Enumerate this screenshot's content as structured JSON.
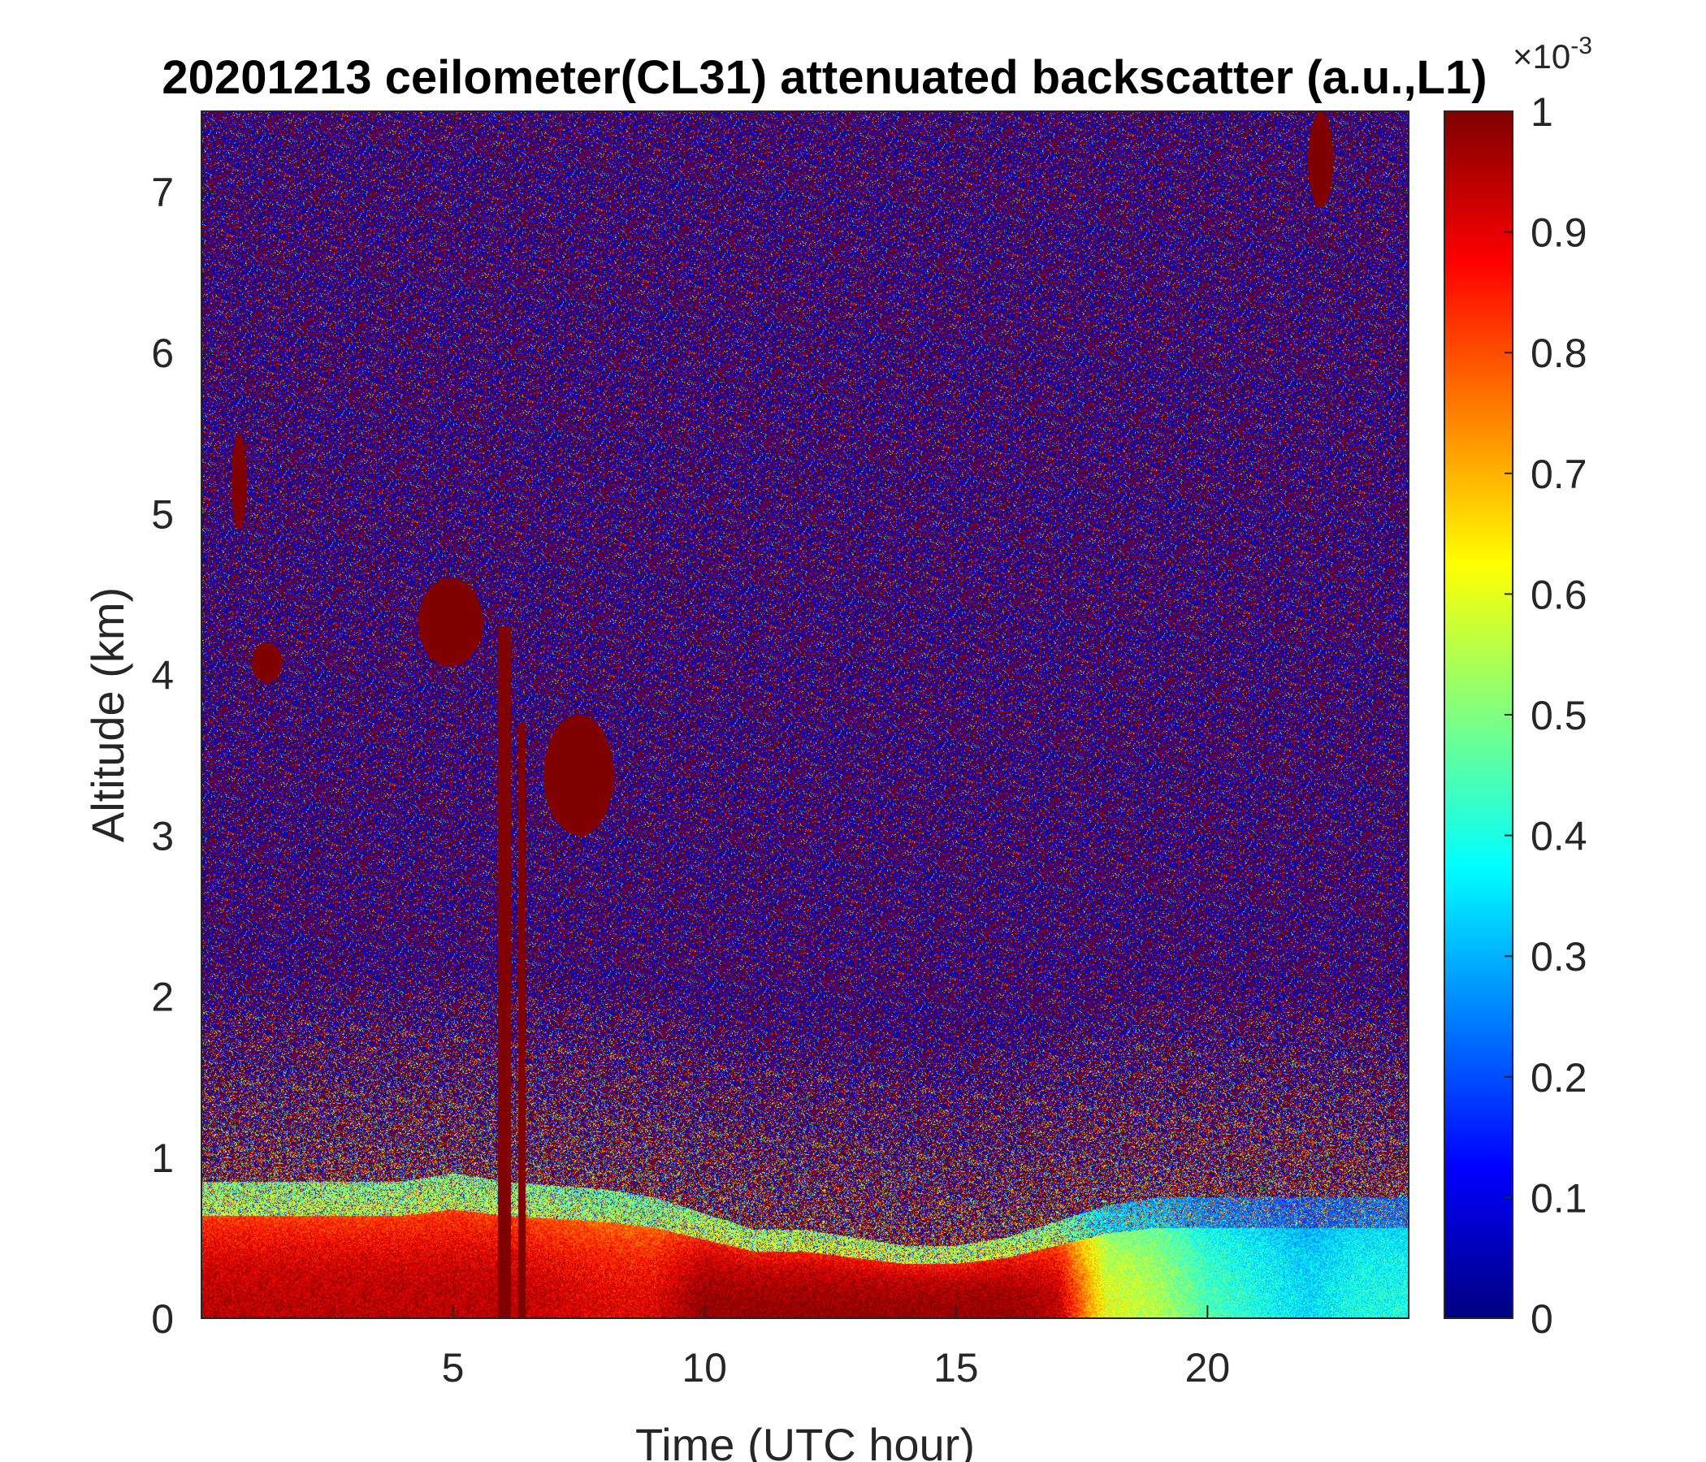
{
  "chart_data": {
    "type": "heatmap",
    "title": "20201213 ceilometer(CL31) attenuated backscatter (a.u.,L1)",
    "xlabel": "Time (UTC hour)",
    "ylabel": "Altitude (km)",
    "xlim": [
      0,
      24
    ],
    "ylim": [
      0,
      7.5
    ],
    "xticks": [
      5,
      10,
      15,
      20
    ],
    "yticks": [
      0,
      1,
      2,
      3,
      4,
      5,
      6,
      7
    ],
    "colorbar": {
      "clim": [
        0,
        1
      ],
      "ticks": [
        0,
        0.1,
        0.2,
        0.3,
        0.4,
        0.5,
        0.6,
        0.7,
        0.8,
        0.9,
        1
      ],
      "tick_labels": [
        "0",
        "0.1",
        "0.2",
        "0.3",
        "0.4",
        "0.5",
        "0.6",
        "0.7",
        "0.8",
        "0.9",
        "1"
      ],
      "exponent_base": "×10",
      "exponent_power": "-3",
      "colormap": "jet"
    },
    "boundary_layer": {
      "description_hours": [
        0,
        2,
        4,
        5,
        6,
        8,
        9,
        10,
        11,
        12,
        13,
        14,
        15,
        16,
        17,
        18,
        19,
        20,
        21,
        22,
        23,
        24
      ],
      "top_km": [
        0.85,
        0.85,
        0.85,
        0.9,
        0.85,
        0.8,
        0.75,
        0.65,
        0.55,
        0.55,
        0.5,
        0.45,
        0.45,
        0.5,
        0.6,
        0.7,
        0.75,
        0.75,
        0.75,
        0.75,
        0.75,
        0.75
      ],
      "intensity": [
        0.95,
        0.95,
        0.95,
        0.95,
        0.95,
        0.9,
        0.9,
        1.0,
        1.0,
        1.0,
        1.0,
        1.0,
        1.0,
        1.0,
        0.95,
        0.6,
        0.55,
        0.45,
        0.4,
        0.35,
        0.4,
        0.4
      ]
    },
    "features": [
      {
        "name": "cloud",
        "t0": 4.3,
        "t1": 5.6,
        "z0": 4.05,
        "z1": 4.6,
        "value": 1
      },
      {
        "name": "cloud",
        "t0": 1.0,
        "t1": 1.6,
        "z0": 3.95,
        "z1": 4.2,
        "value": 1
      },
      {
        "name": "cloud",
        "t0": 6.8,
        "t1": 8.2,
        "z0": 3.0,
        "z1": 3.75,
        "value": 1
      },
      {
        "name": "fallstreak",
        "t0": 5.9,
        "t1": 6.15,
        "z0": 0.0,
        "z1": 4.3,
        "value": 1
      },
      {
        "name": "fallstreak",
        "t0": 6.3,
        "t1": 6.45,
        "z0": 0.0,
        "z1": 3.7,
        "value": 1
      },
      {
        "name": "streak",
        "t0": 0.6,
        "t1": 0.9,
        "z0": 4.9,
        "z1": 5.5,
        "value": 1
      },
      {
        "name": "streak",
        "t0": 22.0,
        "t1": 22.5,
        "z0": 6.9,
        "z1": 7.5,
        "value": 1
      }
    ]
  }
}
